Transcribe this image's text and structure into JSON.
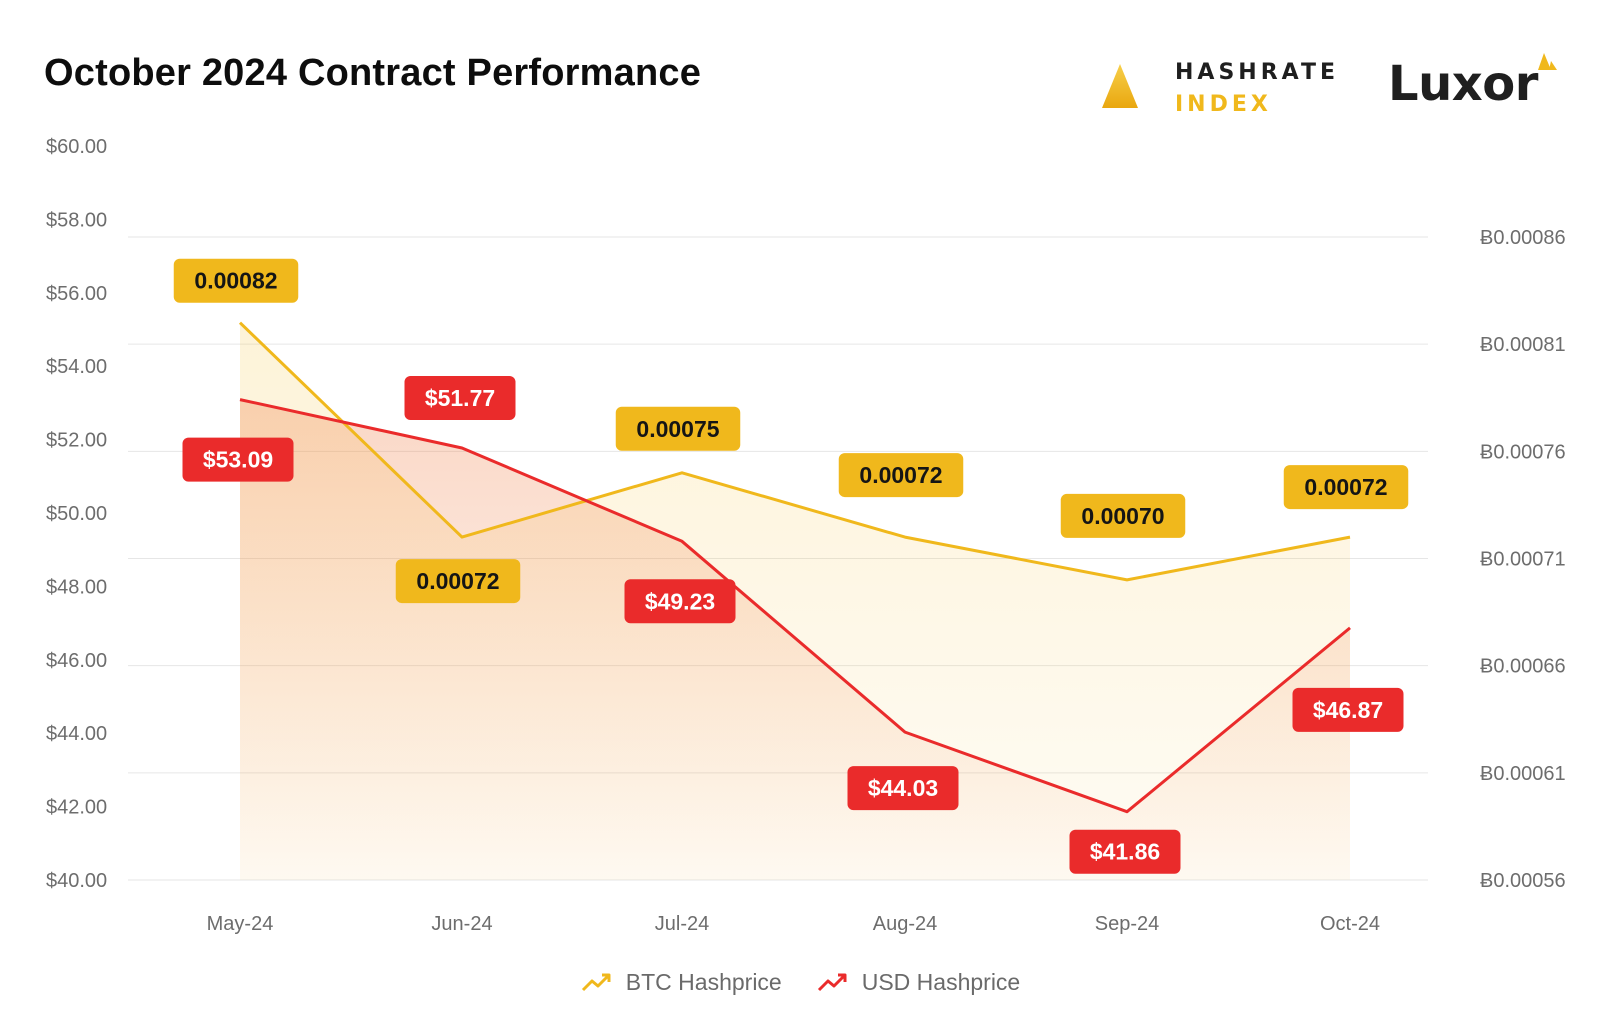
{
  "header": {
    "title": "October 2024 Contract Performance",
    "brand1_line1": "HASHRATE",
    "brand1_line2": "INDEX",
    "brand2": "Luxor"
  },
  "legend": {
    "btc_label": "BTC Hashprice",
    "usd_label": "USD Hashprice"
  },
  "colors": {
    "btc": "#f0b81c",
    "usd": "#ea2b2b",
    "grid": "#e6e6e6",
    "axis_text": "#6d6d6d"
  },
  "chart_data": {
    "type": "line",
    "categories": [
      "May-24",
      "Jun-24",
      "Jul-24",
      "Aug-24",
      "Sep-24",
      "Oct-24"
    ],
    "series": [
      {
        "name": "BTC Hashprice",
        "axis": "right",
        "values": [
          0.00082,
          0.00072,
          0.00075,
          0.00072,
          0.0007,
          0.00072
        ],
        "labels": [
          "0.00082",
          "0.00072",
          "0.00075",
          "0.00072",
          "0.00070",
          "0.00072"
        ]
      },
      {
        "name": "USD Hashprice",
        "axis": "left",
        "values": [
          53.09,
          51.77,
          49.23,
          44.03,
          41.86,
          46.87
        ],
        "labels": [
          "$53.09",
          "$51.77",
          "$49.23",
          "$44.03",
          "$41.86",
          "$46.87"
        ]
      }
    ],
    "y_left": {
      "min": 40,
      "max": 60,
      "ticks": [
        "$60.00",
        "$58.00",
        "$56.00",
        "$54.00",
        "$52.00",
        "$50.00",
        "$48.00",
        "$46.00",
        "$44.00",
        "$42.00",
        "$40.00"
      ]
    },
    "y_right": {
      "min": 0.00056,
      "max": 0.00086,
      "ticks": [
        "Ƀ0.00086",
        "Ƀ0.00081",
        "Ƀ0.00076",
        "Ƀ0.00071",
        "Ƀ0.00066",
        "Ƀ0.00061",
        "Ƀ0.00056"
      ]
    },
    "grid": true,
    "legend_position": "bottom"
  }
}
